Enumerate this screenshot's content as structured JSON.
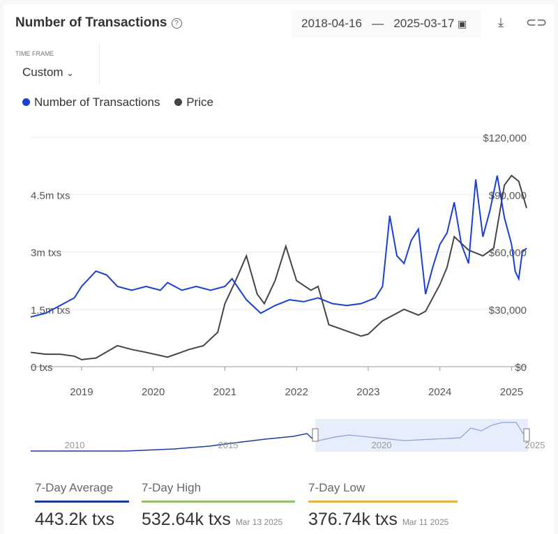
{
  "header": {
    "title": "Number of Transactions",
    "start_date": "2018-04-16",
    "separator": "—",
    "end_date": "2025-03-17"
  },
  "timeframe": {
    "label": "TIME FRAME",
    "value": "Custom"
  },
  "legend": [
    {
      "label": "Number of Transactions",
      "color": "#1a3fd6"
    },
    {
      "label": "Price",
      "color": "#444444"
    }
  ],
  "chart_data": {
    "type": "line",
    "x_ticks": [
      "2019",
      "2020",
      "2021",
      "2022",
      "2023",
      "2024",
      "2025"
    ],
    "left_ticks": [
      "0 txs",
      "1.5m txs",
      "3m txs",
      "4.5m txs"
    ],
    "right_ticks": [
      "$0",
      "$30,000",
      "$60,000",
      "$90,000",
      "$120,000"
    ],
    "xlim": [
      2018.29,
      2025.21
    ],
    "ylim_left_millions": [
      0,
      6
    ],
    "ylim_right_usd": [
      0,
      120000
    ],
    "series": [
      {
        "name": "Number of Transactions",
        "unit": "million txs",
        "color": "#1a3fd6",
        "x": [
          2018.29,
          2018.5,
          2018.7,
          2018.9,
          2019.0,
          2019.1,
          2019.2,
          2019.35,
          2019.5,
          2019.7,
          2019.9,
          2020.1,
          2020.2,
          2020.4,
          2020.6,
          2020.8,
          2021.0,
          2021.1,
          2021.3,
          2021.5,
          2021.7,
          2021.9,
          2022.1,
          2022.3,
          2022.5,
          2022.7,
          2022.9,
          2023.1,
          2023.2,
          2023.3,
          2023.4,
          2023.5,
          2023.6,
          2023.7,
          2023.8,
          2023.9,
          2024.0,
          2024.1,
          2024.2,
          2024.3,
          2024.4,
          2024.5,
          2024.6,
          2024.7,
          2024.8,
          2024.9,
          2025.0,
          2025.05,
          2025.1,
          2025.15,
          2025.21
        ],
        "y": [
          1.3,
          1.4,
          1.6,
          1.8,
          2.1,
          2.3,
          2.5,
          2.4,
          2.1,
          2.0,
          2.1,
          2.0,
          2.2,
          2.0,
          2.1,
          2.0,
          2.1,
          2.3,
          1.75,
          1.4,
          1.6,
          1.75,
          1.7,
          1.8,
          1.65,
          1.6,
          1.65,
          1.8,
          2.1,
          3.95,
          2.9,
          2.7,
          3.3,
          3.6,
          1.9,
          2.6,
          3.2,
          3.5,
          4.3,
          3.2,
          2.7,
          4.9,
          3.4,
          4.1,
          5.0,
          3.9,
          3.2,
          2.5,
          2.3,
          3.0,
          3.1
        ]
      },
      {
        "name": "Price",
        "unit": "USD thousands",
        "color": "#444444",
        "x": [
          2018.29,
          2018.5,
          2018.7,
          2018.9,
          2019.0,
          2019.2,
          2019.5,
          2019.7,
          2019.9,
          2020.2,
          2020.5,
          2020.7,
          2020.9,
          2021.0,
          2021.15,
          2021.3,
          2021.45,
          2021.55,
          2021.7,
          2021.85,
          2022.0,
          2022.2,
          2022.3,
          2022.45,
          2022.6,
          2022.9,
          2023.0,
          2023.2,
          2023.5,
          2023.7,
          2023.8,
          2023.9,
          2024.0,
          2024.1,
          2024.2,
          2024.4,
          2024.6,
          2024.75,
          2024.9,
          2025.0,
          2025.1,
          2025.21
        ],
        "y": [
          7.5,
          6.5,
          6.5,
          5.5,
          3.7,
          4.5,
          11,
          9,
          7.5,
          5,
          9,
          11,
          18,
          33,
          45,
          58,
          38,
          33,
          45,
          63,
          45,
          40,
          42,
          22,
          20,
          16,
          17,
          24,
          30,
          27,
          29,
          36,
          43,
          52,
          68,
          61,
          58,
          62,
          95,
          100,
          97,
          83
        ]
      }
    ]
  },
  "navigator": {
    "labels": [
      "2010",
      "2015",
      "2020",
      "2025"
    ]
  },
  "stats": [
    {
      "label": "7-Day Average",
      "value": "443.2k txs",
      "date": "",
      "color": "#1a3a9e"
    },
    {
      "label": "7-Day High",
      "value": "532.64k txs",
      "date": "Mar 13 2025",
      "color": "#8dc26a"
    },
    {
      "label": "7-Day Low",
      "value": "376.74k txs",
      "date": "Mar 11 2025",
      "color": "#e8b04a"
    }
  ]
}
